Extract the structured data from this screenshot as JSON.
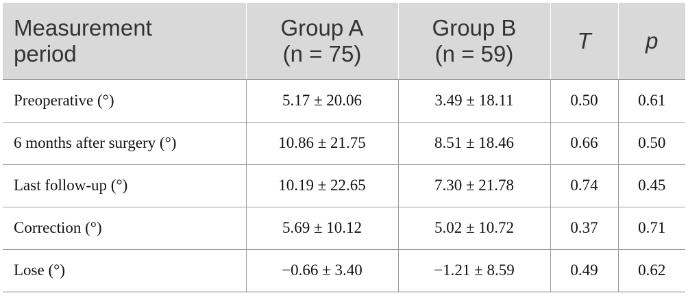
{
  "table": {
    "headers": [
      {
        "line1": "Measurement",
        "line2": "period"
      },
      {
        "line1": "Group A",
        "line2": "(n = 75)"
      },
      {
        "line1": "Group B",
        "line2": "(n = 59)"
      },
      {
        "line1": "T",
        "line2": ""
      },
      {
        "line1": "p",
        "line2": ""
      }
    ],
    "rows": [
      [
        "Preoperative (°)",
        "5.17 ± 20.06",
        "3.49 ± 18.11",
        "0.50",
        "0.61"
      ],
      [
        "6 months after surgery (°)",
        "10.86 ± 21.75",
        "8.51 ± 18.46",
        "0.66",
        "0.50"
      ],
      [
        "Last follow-up (°)",
        "10.19 ± 22.65",
        "7.30 ± 21.78",
        "0.74",
        "0.45"
      ],
      [
        "Correction (°)",
        "5.69 ± 10.12",
        "5.02 ± 10.72",
        "0.37",
        "0.71"
      ],
      [
        "Lose (°)",
        "−0.66 ± 3.40",
        "−1.21 ± 8.59",
        "0.49",
        "0.62"
      ]
    ]
  },
  "colors": {
    "header_background": "#d9d9d9",
    "header_text": "#333333",
    "body_text": "#111111",
    "rule": "#9a9a9a"
  }
}
